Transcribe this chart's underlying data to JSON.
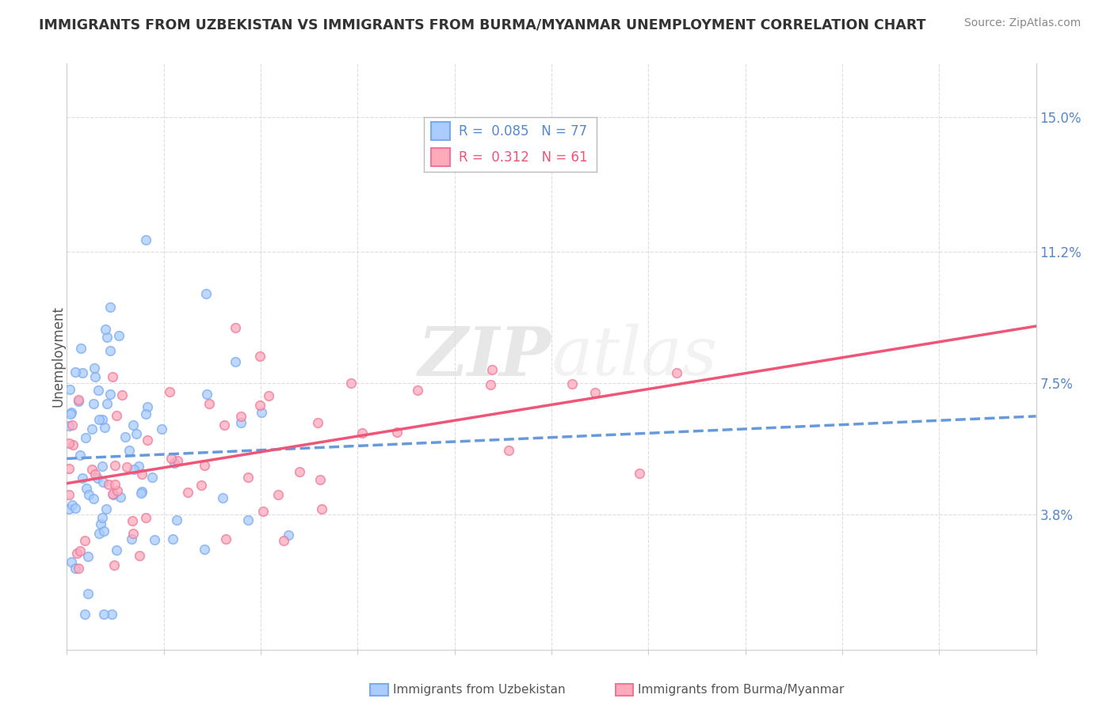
{
  "title": "IMMIGRANTS FROM UZBEKISTAN VS IMMIGRANTS FROM BURMA/MYANMAR UNEMPLOYMENT CORRELATION CHART",
  "source": "Source: ZipAtlas.com",
  "ylabel": "Unemployment",
  "y_ticks": [
    3.8,
    7.5,
    11.2,
    15.0
  ],
  "x_range": [
    0.0,
    20.0
  ],
  "y_range": [
    0.0,
    16.5
  ],
  "legend_r1": "R =  0.085",
  "legend_n1": "N = 77",
  "legend_r2": "R =  0.312",
  "legend_n2": "N = 61",
  "color_uzbekistan_fill": "#aaccff",
  "color_uzbekistan_edge": "#7aabee",
  "color_uzbekistan_line": "#6699dd",
  "color_burma_fill": "#ffaabb",
  "color_burma_edge": "#ee7799",
  "color_burma_line": "#ee5577",
  "watermark_zip": "ZIP",
  "watermark_atlas": "atlas",
  "label_uzbekistan": "Immigrants from Uzbekistan",
  "label_burma": "Immigrants from Burma/Myanmar",
  "n_uzbek": 77,
  "n_burma": 61,
  "R_uzbek": 0.085,
  "R_burma": 0.312,
  "tick_color": "#5588cc",
  "title_color": "#333333",
  "source_color": "#888888",
  "ylabel_color": "#555555"
}
